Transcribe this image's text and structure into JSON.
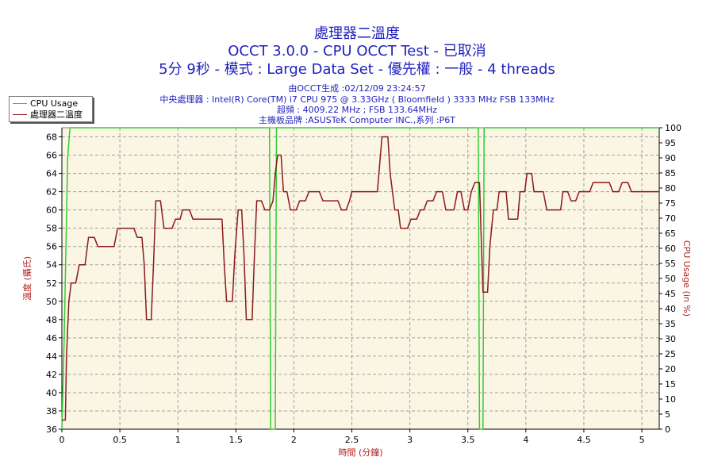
{
  "title": [
    "處理器二溫度",
    "OCCT 3.0.0 - CPU OCCT Test - 已取消",
    "5分 9秒 - 模式 : Large Data Set - 優先權 : 一般 - 4 threads"
  ],
  "info": [
    "由OCCT生成 :02/12/09 23:24:57",
    "中央處理器 : Intel(R) Core(TM) i7 CPU 975 @ 3.33GHz ( Bloomfield ) 3333 MHz FSB 133MHz",
    "超頻 : 4009.22 MHz ; FSB 133.64MHz",
    "主機板品牌 :ASUSTeK Computer INC.,系列 :P6T"
  ],
  "colors": {
    "background": "#fbf5e4",
    "grid": "#a0a0a0",
    "temperature": "#8b1a1a",
    "cpu_usage": "#33cc33",
    "text": "#1f1fbf",
    "axis_title": "#b22222"
  },
  "chart_data": {
    "type": "line",
    "title": "處理器二溫度",
    "xlabel": "時間 (分鐘)",
    "ylabel": "溫度 (攝氏)",
    "y2label": "CPU Usage (in %)",
    "xlim": [
      0,
      5.15
    ],
    "ylim": [
      36,
      69
    ],
    "y2lim": [
      0,
      100
    ],
    "x_ticks": [
      "0",
      "0.5",
      "1",
      "1.5",
      "2",
      "2.5",
      "3",
      "3.5",
      "4",
      "4.5",
      "5"
    ],
    "y_ticks": [
      "36",
      "38",
      "40",
      "42",
      "44",
      "46",
      "48",
      "50",
      "52",
      "54",
      "56",
      "58",
      "60",
      "62",
      "64",
      "66",
      "68"
    ],
    "y2_ticks": [
      "0",
      "5",
      "10",
      "15",
      "20",
      "25",
      "30",
      "35",
      "40",
      "45",
      "50",
      "55",
      "60",
      "65",
      "70",
      "75",
      "80",
      "85",
      "90",
      "95",
      "100"
    ],
    "grid": true,
    "legend_position": "top-left",
    "series": [
      {
        "name": "CPU Usage",
        "axis": "right",
        "points": [
          [
            0,
            0
          ],
          [
            0.02,
            30
          ],
          [
            0.05,
            90
          ],
          [
            0.07,
            100
          ],
          [
            1.79,
            100
          ],
          [
            1.8,
            0
          ],
          [
            1.84,
            0
          ],
          [
            1.85,
            100
          ],
          [
            3.59,
            100
          ],
          [
            3.6,
            0
          ],
          [
            3.63,
            0
          ],
          [
            3.64,
            100
          ],
          [
            5.15,
            100
          ]
        ]
      },
      {
        "name": "處理器二溫度",
        "axis": "left",
        "points": [
          [
            0,
            37
          ],
          [
            0.03,
            37
          ],
          [
            0.04,
            44
          ],
          [
            0.06,
            50
          ],
          [
            0.08,
            52
          ],
          [
            0.12,
            52
          ],
          [
            0.15,
            54
          ],
          [
            0.2,
            54
          ],
          [
            0.23,
            57
          ],
          [
            0.28,
            57
          ],
          [
            0.31,
            56
          ],
          [
            0.45,
            56
          ],
          [
            0.48,
            58
          ],
          [
            0.62,
            58
          ],
          [
            0.65,
            57
          ],
          [
            0.69,
            57
          ],
          [
            0.71,
            54
          ],
          [
            0.73,
            48
          ],
          [
            0.77,
            48
          ],
          [
            0.79,
            54
          ],
          [
            0.81,
            61
          ],
          [
            0.85,
            61
          ],
          [
            0.88,
            58
          ],
          [
            0.95,
            58
          ],
          [
            0.98,
            59
          ],
          [
            1.02,
            59
          ],
          [
            1.04,
            60
          ],
          [
            1.1,
            60
          ],
          [
            1.13,
            59
          ],
          [
            1.38,
            59
          ],
          [
            1.4,
            54
          ],
          [
            1.42,
            50
          ],
          [
            1.47,
            50
          ],
          [
            1.49,
            55
          ],
          [
            1.52,
            60
          ],
          [
            1.55,
            60
          ],
          [
            1.57,
            55
          ],
          [
            1.59,
            48
          ],
          [
            1.64,
            48
          ],
          [
            1.66,
            55
          ],
          [
            1.68,
            61
          ],
          [
            1.72,
            61
          ],
          [
            1.75,
            60
          ],
          [
            1.79,
            60
          ],
          [
            1.82,
            61
          ],
          [
            1.84,
            64
          ],
          [
            1.86,
            66
          ],
          [
            1.89,
            66
          ],
          [
            1.91,
            62
          ],
          [
            1.94,
            62
          ],
          [
            1.97,
            60
          ],
          [
            2.02,
            60
          ],
          [
            2.05,
            61
          ],
          [
            2.1,
            61
          ],
          [
            2.13,
            62
          ],
          [
            2.22,
            62
          ],
          [
            2.25,
            61
          ],
          [
            2.38,
            61
          ],
          [
            2.41,
            60
          ],
          [
            2.45,
            60
          ],
          [
            2.48,
            61
          ],
          [
            2.5,
            62
          ],
          [
            2.72,
            62
          ],
          [
            2.74,
            65
          ],
          [
            2.76,
            68
          ],
          [
            2.81,
            68
          ],
          [
            2.83,
            64
          ],
          [
            2.87,
            60
          ],
          [
            2.9,
            60
          ],
          [
            2.92,
            58
          ],
          [
            2.98,
            58
          ],
          [
            3.01,
            59
          ],
          [
            3.06,
            59
          ],
          [
            3.09,
            60
          ],
          [
            3.12,
            60
          ],
          [
            3.15,
            61
          ],
          [
            3.2,
            61
          ],
          [
            3.23,
            62
          ],
          [
            3.28,
            62
          ],
          [
            3.31,
            60
          ],
          [
            3.38,
            60
          ],
          [
            3.41,
            62
          ],
          [
            3.44,
            62
          ],
          [
            3.47,
            60
          ],
          [
            3.5,
            60
          ],
          [
            3.53,
            62
          ],
          [
            3.56,
            63
          ],
          [
            3.6,
            63
          ],
          [
            3.62,
            55
          ],
          [
            3.63,
            51
          ],
          [
            3.67,
            51
          ],
          [
            3.69,
            56
          ],
          [
            3.72,
            60
          ],
          [
            3.75,
            60
          ],
          [
            3.77,
            62
          ],
          [
            3.83,
            62
          ],
          [
            3.85,
            59
          ],
          [
            3.93,
            59
          ],
          [
            3.95,
            62
          ],
          [
            3.99,
            62
          ],
          [
            4.01,
            64
          ],
          [
            4.05,
            64
          ],
          [
            4.07,
            62
          ],
          [
            4.12,
            62
          ],
          [
            4.15,
            62
          ],
          [
            4.18,
            60
          ],
          [
            4.3,
            60
          ],
          [
            4.32,
            62
          ],
          [
            4.36,
            62
          ],
          [
            4.39,
            61
          ],
          [
            4.43,
            61
          ],
          [
            4.46,
            62
          ],
          [
            4.55,
            62
          ],
          [
            4.58,
            63
          ],
          [
            4.72,
            63
          ],
          [
            4.75,
            62
          ],
          [
            4.8,
            62
          ],
          [
            4.83,
            63
          ],
          [
            4.88,
            63
          ],
          [
            4.91,
            62
          ],
          [
            5.15,
            62
          ]
        ]
      }
    ]
  }
}
